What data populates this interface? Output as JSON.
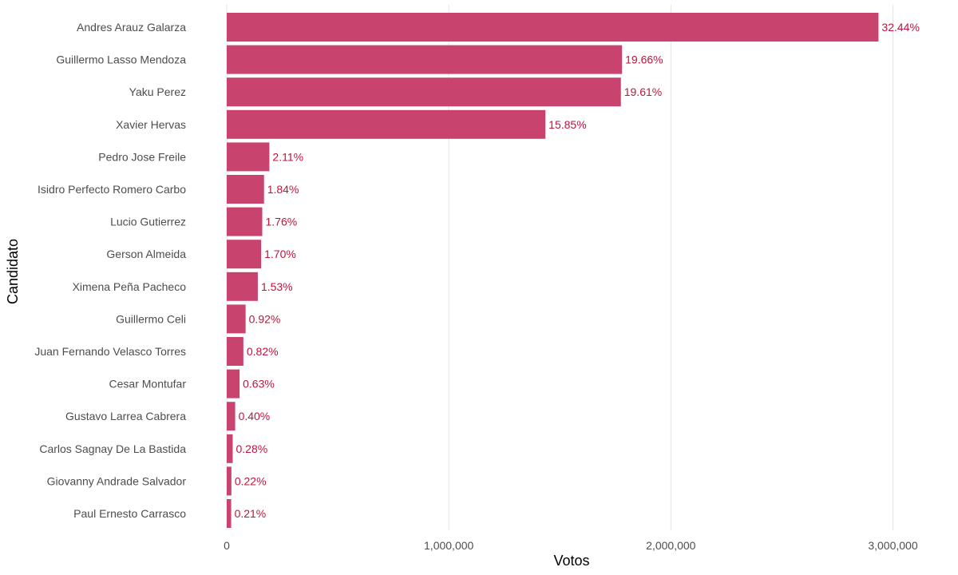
{
  "chart_data": {
    "type": "bar",
    "orientation": "horizontal",
    "xlabel": "Votos",
    "ylabel": "Candidato",
    "xlim": [
      0,
      3000000
    ],
    "x_ticks": [
      0,
      1000000,
      2000000,
      3000000
    ],
    "x_tick_labels": [
      "0",
      "1,000,000",
      "2,000,000",
      "3,000,000"
    ],
    "grid": "vertical",
    "legend": "none",
    "bar_color": "#c8446f",
    "label_color": "#c0143c",
    "categories": [
      "Andres Arauz Galarza",
      "Guillermo Lasso Mendoza",
      "Yaku Perez",
      "Xavier Hervas",
      "Pedro Jose Freile",
      "Isidro Perfecto Romero Carbo",
      "Lucio Gutierrez",
      "Gerson Almeida",
      "Ximena Peña Pacheco",
      "Guillermo Celi",
      "Juan Fernando Velasco Torres",
      "Cesar Montufar",
      "Gustavo Larrea Cabrera",
      "Carlos Sagnay De La Bastida",
      "Giovanny Andrade Salvador",
      "Paul Ernesto Carrasco"
    ],
    "values": [
      2935000,
      1780000,
      1775000,
      1435000,
      192000,
      168000,
      160000,
      155000,
      140000,
      85000,
      75000,
      58000,
      38000,
      27000,
      21000,
      20000
    ],
    "data_labels": [
      "32.44%",
      "19.66%",
      "19.61%",
      "15.85%",
      "2.11%",
      "1.84%",
      "1.76%",
      "1.70%",
      "1.53%",
      "0.92%",
      "0.82%",
      "0.63%",
      "0.40%",
      "0.28%",
      "0.22%",
      "0.21%"
    ]
  }
}
